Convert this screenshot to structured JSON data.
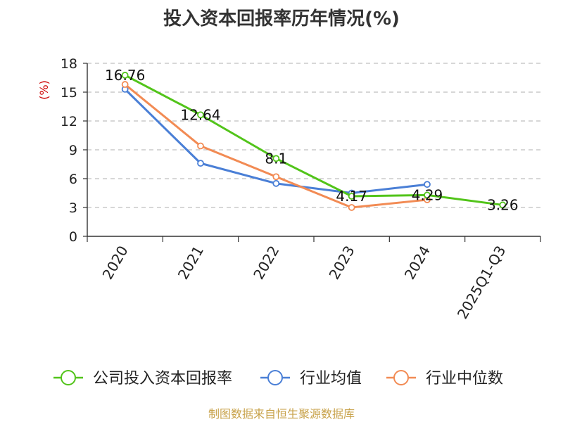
{
  "chart_data": {
    "type": "line",
    "title": "投入资本回报率历年情况(%)",
    "ylabel": "(%)",
    "xlabel": "",
    "categories": [
      "2020",
      "2021",
      "2022",
      "2023",
      "2024",
      "2025Q1-Q3"
    ],
    "ylim": [
      0,
      18
    ],
    "yticks": [
      0,
      3,
      6,
      9,
      12,
      15,
      18
    ],
    "grid": true,
    "legend_position": "bottom",
    "series": [
      {
        "name": "公司投入资本回报率",
        "color": "#52c41a",
        "values": [
          16.76,
          12.64,
          8.1,
          4.17,
          4.29,
          3.26
        ],
        "labels": [
          "16.76",
          "12.64",
          "8.1",
          "4.17",
          "4.29",
          "3.26"
        ]
      },
      {
        "name": "行业均值",
        "color": "#4a7fd6",
        "values": [
          15.3,
          7.6,
          5.5,
          4.5,
          5.4,
          null
        ]
      },
      {
        "name": "行业中位数",
        "color": "#f28b54",
        "values": [
          15.8,
          9.4,
          6.2,
          3.0,
          3.8,
          null
        ]
      }
    ]
  },
  "source_note": "制图数据来自恒生聚源数据库",
  "colors": {
    "axis_label": "#cc0000",
    "source": "#c8a24a"
  }
}
